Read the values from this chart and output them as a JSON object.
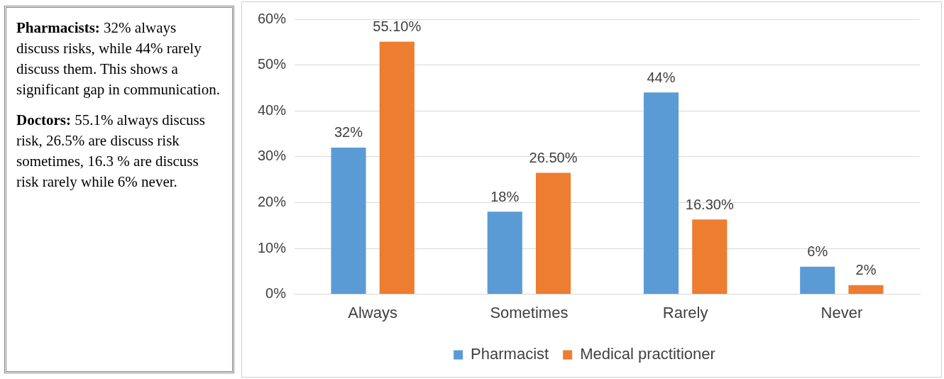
{
  "chart_data": {
    "type": "bar",
    "categories": [
      "Always",
      "Sometimes",
      "Rarely",
      "Never"
    ],
    "series": [
      {
        "name": "Pharmacist",
        "color": "#5b9bd5",
        "values": [
          32,
          18,
          44,
          6
        ],
        "value_labels": [
          "32%",
          "18%",
          "44%",
          "6%"
        ]
      },
      {
        "name": "Medical practitioner",
        "color": "#ed7d31",
        "values": [
          55.1,
          26.5,
          16.3,
          2
        ],
        "value_labels": [
          "55.10%",
          "26.50%",
          "16.30%",
          "2%"
        ]
      }
    ],
    "ylim": [
      0,
      60
    ],
    "yticks": [
      {
        "value": 0,
        "label": "0%"
      },
      {
        "value": 10,
        "label": "10%"
      },
      {
        "value": 20,
        "label": "20%"
      },
      {
        "value": 30,
        "label": "30%"
      },
      {
        "value": 40,
        "label": "40%"
      },
      {
        "value": 50,
        "label": "50%"
      },
      {
        "value": 60,
        "label": "60%"
      }
    ],
    "grid": "y",
    "legend": "bottom",
    "annotations": [
      "Pharmacists: 32% always discuss risks, while 44% rarely discuss them. This shows a significant gap in communication.",
      "Doctors: 55.1% always discuss risk, 26.5% are discuss risk sometimes, 16.3 % are discuss risk rarely while 6% never."
    ]
  }
}
